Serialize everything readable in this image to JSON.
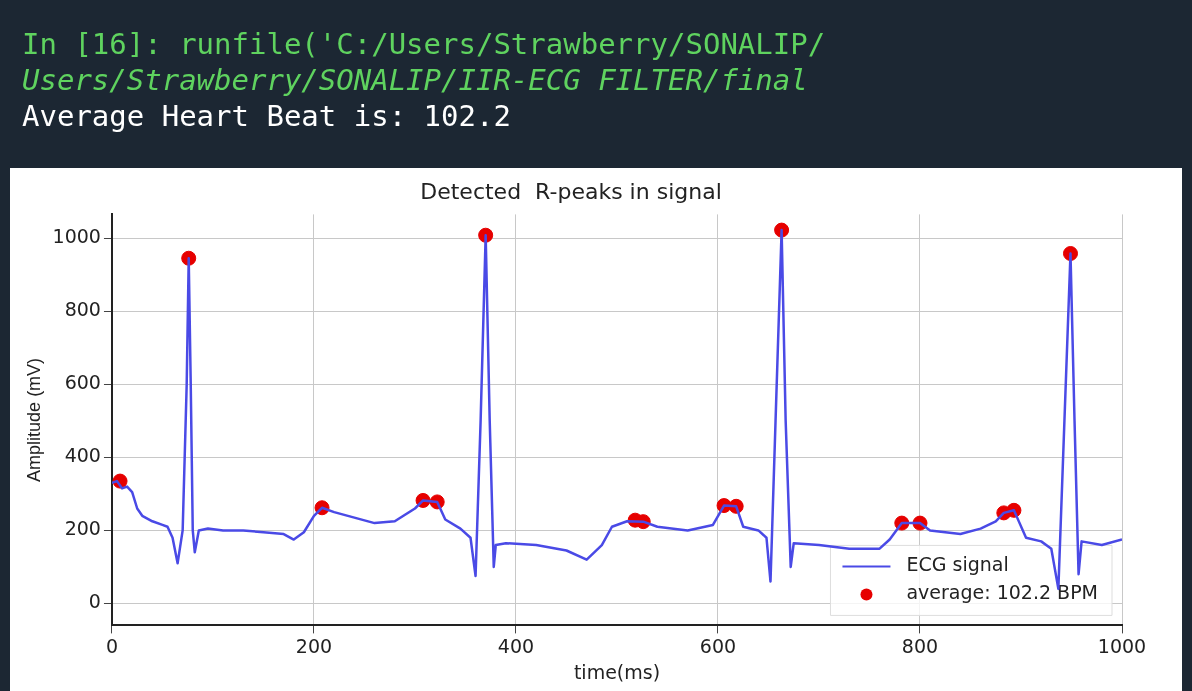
{
  "chart_data": {
    "type": "line",
    "title": "Detected  R-peaks in signal",
    "xlabel": "time(ms)",
    "ylabel": "Amplitude (mV)",
    "annotations": [
      "In [16]: runfile('C:/Users/Strawberry/SONALIP/",
      "Users/Strawberry/SONALIP/IIR-ECG FILTER/final",
      "Average Heart Beat is: 102.2"
    ],
    "xlim": [
      0,
      1000
    ],
    "xticks": [
      0,
      200,
      400,
      600,
      800,
      1000
    ],
    "ylim": [
      -60,
      1065
    ],
    "yticks": [
      0,
      200,
      400,
      600,
      800,
      1000
    ],
    "grid": true,
    "legend": "bottom right",
    "series": [
      {
        "name": "ECG signal",
        "type": "line",
        "color": "#4a4ae6",
        "marker": "none",
        "line_style": "solid",
        "x": [
          0,
          5,
          10,
          15,
          20,
          25,
          30,
          40,
          50,
          55,
          60,
          65,
          70,
          74,
          76,
          78,
          80,
          82,
          86,
          95,
          110,
          130,
          150,
          170,
          180,
          190,
          200,
          208,
          220,
          240,
          260,
          280,
          300,
          308,
          322,
          330,
          345,
          355,
          360,
          365,
          370,
          374,
          378,
          380,
          390,
          420,
          450,
          470,
          485,
          495,
          510,
          526,
          540,
          570,
          595,
          606,
          618,
          625,
          640,
          648,
          652,
          657,
          663,
          667,
          672,
          675,
          700,
          730,
          760,
          770,
          782,
          800,
          810,
          840,
          860,
          875,
          883,
          893,
          905,
          920,
          930,
          937,
          943,
          949,
          953,
          957,
          960,
          980,
          1000
        ],
        "values": [
          330,
          335,
          315,
          320,
          305,
          260,
          240,
          225,
          215,
          210,
          180,
          110,
          200,
          600,
          945,
          600,
          200,
          140,
          200,
          205,
          200,
          200,
          195,
          190,
          175,
          195,
          240,
          262,
          250,
          235,
          220,
          225,
          260,
          282,
          278,
          230,
          205,
          180,
          75,
          500,
          1008,
          500,
          100,
          160,
          165,
          160,
          145,
          120,
          160,
          210,
          225,
          224,
          210,
          200,
          215,
          268,
          266,
          210,
          200,
          180,
          60,
          500,
          1022,
          500,
          100,
          165,
          160,
          150,
          150,
          175,
          220,
          220,
          200,
          190,
          205,
          225,
          248,
          255,
          180,
          170,
          150,
          40,
          500,
          958,
          500,
          80,
          170,
          160,
          175
        ]
      },
      {
        "name": "average: 102.2 BPM",
        "type": "scatter",
        "color": "#e60000",
        "marker": "circle",
        "x": [
          8,
          76,
          208,
          308,
          322,
          370,
          518,
          526,
          606,
          618,
          663,
          782,
          800,
          883,
          893,
          949
        ],
        "values": [
          335,
          945,
          262,
          282,
          278,
          1008,
          228,
          224,
          268,
          266,
          1022,
          220,
          220,
          248,
          255,
          958
        ]
      }
    ]
  }
}
